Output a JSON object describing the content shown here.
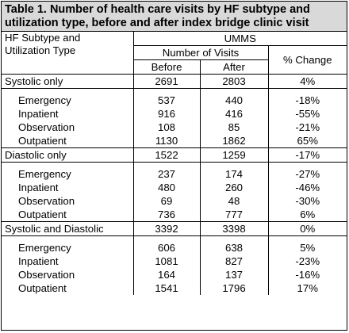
{
  "title_line1": "Table 1. Number of health care visits by HF subtype and",
  "title_line2": "utilization type, before and after index bridge clinic visit",
  "header": {
    "rowlabel_line1": "HF Subtype and",
    "rowlabel_line2": "Utilization Type",
    "org": "UMMS",
    "num_visits": "Number of Visits",
    "before": "Before",
    "after": "After",
    "pct_change": "% Change"
  },
  "groups": [
    {
      "label": "Systolic only",
      "before": "2691",
      "after": "2803",
      "change": "4%",
      "rows": [
        {
          "label": "Emergency",
          "before": "537",
          "after": "440",
          "change": "-18%"
        },
        {
          "label": "Inpatient",
          "before": "916",
          "after": "416",
          "change": "-55%"
        },
        {
          "label": "Observation",
          "before": "108",
          "after": "85",
          "change": "-21%"
        },
        {
          "label": "Outpatient",
          "before": "1130",
          "after": "1862",
          "change": "65%"
        }
      ]
    },
    {
      "label": "Diastolic only",
      "before": "1522",
      "after": "1259",
      "change": "-17%",
      "rows": [
        {
          "label": "Emergency",
          "before": "237",
          "after": "174",
          "change": "-27%"
        },
        {
          "label": "Inpatient",
          "before": "480",
          "after": "260",
          "change": "-46%"
        },
        {
          "label": "Observation",
          "before": "69",
          "after": "48",
          "change": "-30%"
        },
        {
          "label": "Outpatient",
          "before": "736",
          "after": "777",
          "change": "6%"
        }
      ]
    },
    {
      "label": "Systolic and Diastolic",
      "before": "3392",
      "after": "3398",
      "change": "0%",
      "rows": [
        {
          "label": "Emergency",
          "before": "606",
          "after": "638",
          "change": "5%"
        },
        {
          "label": "Inpatient",
          "before": "1081",
          "after": "827",
          "change": "-23%"
        },
        {
          "label": "Observation",
          "before": "164",
          "after": "137",
          "change": "-16%"
        },
        {
          "label": "Outpatient",
          "before": "1541",
          "after": "1796",
          "change": "17%"
        }
      ]
    }
  ]
}
